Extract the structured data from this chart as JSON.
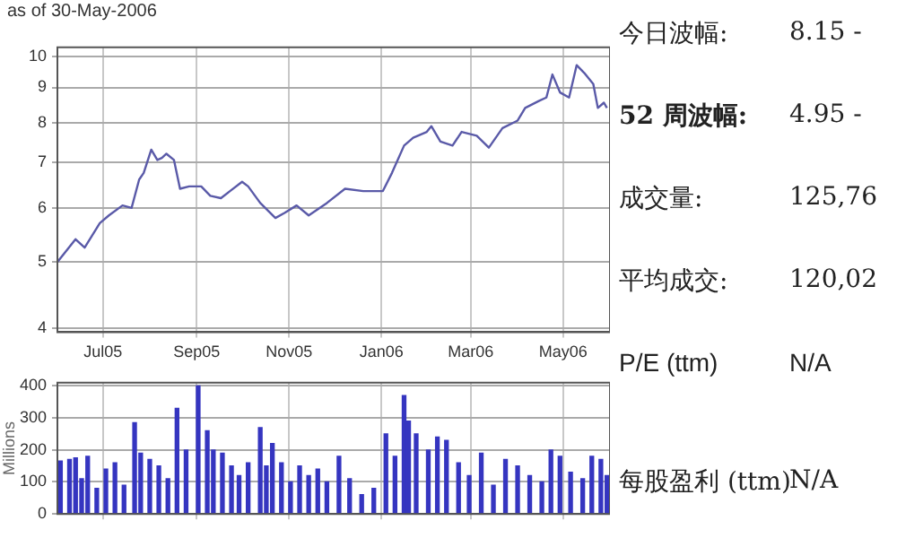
{
  "chart_data": [
    {
      "type": "line",
      "subtitle": "as of 30-May-2006",
      "log": true,
      "grid": true,
      "legend": false,
      "marker": "none",
      "line_style": "solid",
      "x": [
        "2005-06-01",
        "2005-06-13",
        "2005-06-19",
        "2005-06-29",
        "2005-07-05",
        "2005-07-14",
        "2005-07-20",
        "2005-07-25",
        "2005-07-28",
        "2005-08-02",
        "2005-08-06",
        "2005-08-09",
        "2005-08-12",
        "2005-08-17",
        "2005-08-21",
        "2005-08-27",
        "2005-09-04",
        "2005-09-10",
        "2005-09-17",
        "2005-09-23",
        "2005-10-01",
        "2005-10-05",
        "2005-10-13",
        "2005-10-23",
        "2005-10-29",
        "2005-11-06",
        "2005-11-14",
        "2005-11-26",
        "2005-12-08",
        "2005-12-20",
        "2006-01-02",
        "2006-01-08",
        "2006-01-16",
        "2006-01-22",
        "2006-01-31",
        "2006-02-03",
        "2006-02-09",
        "2006-02-17",
        "2006-02-23",
        "2006-03-05",
        "2006-03-13",
        "2006-03-22",
        "2006-04-01",
        "2006-04-06",
        "2006-04-15",
        "2006-04-20",
        "2006-04-24",
        "2006-04-29",
        "2006-05-05",
        "2006-05-10",
        "2006-05-15",
        "2006-05-21",
        "2006-05-24",
        "2006-05-28",
        "2006-05-30"
      ],
      "series": [
        {
          "color": "#5a5aa8",
          "values": [
            5.0,
            5.4,
            5.25,
            5.7,
            5.85,
            6.05,
            6.0,
            6.6,
            6.75,
            7.3,
            7.05,
            7.1,
            7.2,
            7.05,
            6.4,
            6.45,
            6.45,
            6.25,
            6.2,
            6.35,
            6.55,
            6.45,
            6.1,
            5.8,
            5.9,
            6.05,
            5.85,
            6.1,
            6.4,
            6.35,
            6.35,
            6.75,
            7.4,
            7.6,
            7.75,
            7.9,
            7.5,
            7.4,
            7.75,
            7.65,
            7.35,
            7.85,
            8.05,
            8.4,
            8.6,
            8.7,
            9.4,
            8.85,
            8.7,
            9.7,
            9.45,
            9.1,
            8.4,
            8.55,
            8.4
          ]
        }
      ],
      "xlim": [
        "2005-06-01",
        "2006-06-01"
      ],
      "xticks": [
        {
          "value": "2005-07-01",
          "label": "Jul05"
        },
        {
          "value": "2005-09-01",
          "label": "Sep05"
        },
        {
          "value": "2005-11-01",
          "label": "Nov05"
        },
        {
          "value": "2006-01-01",
          "label": "Jan06"
        },
        {
          "value": "2006-03-01",
          "label": "Mar06"
        },
        {
          "value": "2006-05-01",
          "label": "May06"
        }
      ],
      "ylim": [
        3.95,
        10.3
      ],
      "yticks": [
        4,
        5,
        6,
        7,
        8,
        9,
        10
      ]
    },
    {
      "type": "bar",
      "ylabel": "Millions",
      "grid": true,
      "legend": false,
      "tick_labels": "y",
      "x": [
        "2005-06-03",
        "2005-06-09",
        "2005-06-13",
        "2005-06-17",
        "2005-06-21",
        "2005-06-27",
        "2005-07-03",
        "2005-07-09",
        "2005-07-15",
        "2005-07-22",
        "2005-07-26",
        "2005-08-01",
        "2005-08-07",
        "2005-08-13",
        "2005-08-19",
        "2005-08-25",
        "2005-09-02",
        "2005-09-08",
        "2005-09-12",
        "2005-09-18",
        "2005-09-24",
        "2005-09-29",
        "2005-10-05",
        "2005-10-13",
        "2005-10-17",
        "2005-10-21",
        "2005-10-27",
        "2005-11-02",
        "2005-11-08",
        "2005-11-14",
        "2005-11-20",
        "2005-11-26",
        "2005-12-04",
        "2005-12-11",
        "2005-12-19",
        "2005-12-27",
        "2006-01-04",
        "2006-01-10",
        "2006-01-16",
        "2006-01-19",
        "2006-01-24",
        "2006-02-01",
        "2006-02-07",
        "2006-02-13",
        "2006-02-21",
        "2006-02-28",
        "2006-03-08",
        "2006-03-16",
        "2006-03-24",
        "2006-04-01",
        "2006-04-09",
        "2006-04-17",
        "2006-04-23",
        "2006-04-29",
        "2006-05-06",
        "2006-05-14",
        "2006-05-20",
        "2006-05-26",
        "2006-05-30"
      ],
      "series": [
        {
          "color": "#3535c0",
          "values": [
            165,
            170,
            175,
            110,
            180,
            80,
            140,
            160,
            90,
            285,
            190,
            170,
            150,
            110,
            330,
            200,
            400,
            260,
            200,
            190,
            150,
            120,
            160,
            270,
            150,
            220,
            160,
            100,
            150,
            120,
            140,
            100,
            180,
            110,
            60,
            80,
            250,
            180,
            370,
            290,
            250,
            200,
            240,
            230,
            160,
            120,
            190,
            90,
            170,
            150,
            120,
            100,
            200,
            180,
            130,
            110,
            180,
            170,
            120
          ]
        }
      ],
      "xlim": [
        "2005-06-01",
        "2006-06-01"
      ],
      "xticks": [
        {
          "value": "2005-07-01",
          "label": null
        },
        {
          "value": "2005-09-01",
          "label": null
        },
        {
          "value": "2005-11-01",
          "label": null
        },
        {
          "value": "2006-01-01",
          "label": null
        },
        {
          "value": "2006-03-01",
          "label": null
        },
        {
          "value": "2006-05-01",
          "label": null
        }
      ],
      "ylim": [
        0,
        410
      ],
      "yticks": [
        0,
        100,
        200,
        300,
        400
      ]
    },
    {
      "type": "other",
      "annotations": [
        "今日波幅:",
        "8.15 -",
        "52 周波幅:",
        "4.95 -",
        "成交量:",
        "125,76",
        "平均成交:",
        "120,02",
        "P/E (ttm)",
        "N/A",
        "每股盈利 (ttm)",
        "N/A"
      ]
    }
  ]
}
